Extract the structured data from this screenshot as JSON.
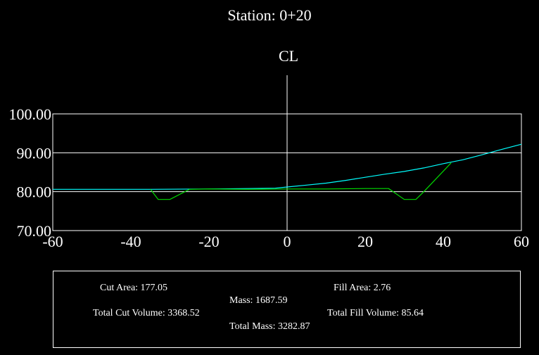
{
  "chart_data": {
    "type": "line",
    "title": "Station: 0+20",
    "centerline_label": "CL",
    "xlim": [
      -60,
      60
    ],
    "ylim": [
      70,
      100
    ],
    "x_ticks": [
      "-60",
      "-40",
      "-20",
      "0",
      "20",
      "40",
      "60"
    ],
    "y_ticks": [
      "70.00",
      "80.00",
      "90.00",
      "100.00"
    ],
    "grid": true,
    "series": [
      {
        "color": "#00ffff",
        "x": [
          -60,
          -35,
          -20,
          -10,
          -3,
          0,
          5,
          10,
          15,
          20,
          25,
          30,
          35,
          40,
          45,
          50,
          55,
          60
        ],
        "y": [
          80.6,
          80.6,
          80.7,
          80.8,
          80.9,
          81.2,
          81.7,
          82.2,
          82.9,
          83.7,
          84.5,
          85.2,
          86.1,
          87.2,
          88.2,
          89.5,
          90.9,
          92.2
        ]
      },
      {
        "color": "#00dd00",
        "x": [
          -35,
          -33,
          -30,
          -25,
          -20,
          -10,
          0,
          10,
          20,
          26,
          30,
          33,
          35,
          42
        ],
        "y": [
          80.6,
          78.0,
          78.0,
          80.6,
          80.7,
          80.6,
          80.7,
          80.7,
          80.8,
          80.8,
          78.0,
          78.0,
          80.0,
          87.4
        ]
      }
    ]
  },
  "summary": {
    "cut_area": "Cut Area: 177.05",
    "fill_area": "Fill Area: 2.76",
    "mass": "Mass: 1687.59",
    "total_cut_volume": "Total Cut Volume: 3368.52",
    "total_fill_volume": "Total Fill Volume: 85.64",
    "total_mass": "Total Mass: 3282.87"
  }
}
